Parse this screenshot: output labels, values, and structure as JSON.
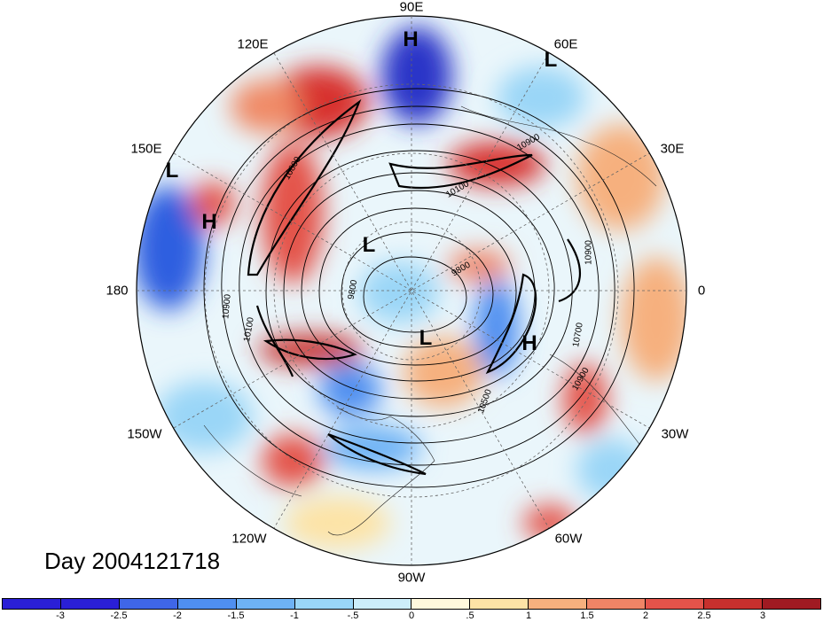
{
  "timestamp": "Day 2004121718",
  "longitude_labels": [
    "90E",
    "60E",
    "30E",
    "0",
    "30W",
    "60W",
    "90W",
    "120W",
    "150W",
    "180",
    "150E",
    "120E"
  ],
  "pressure_centers": [
    {
      "label": "H"
    },
    {
      "label": "L"
    },
    {
      "label": "L"
    },
    {
      "label": "H"
    },
    {
      "label": "L"
    },
    {
      "label": "L"
    },
    {
      "label": "H"
    }
  ],
  "contour_labels": [
    "10900",
    "10100",
    "10900",
    "10700",
    "10900",
    "10500",
    "9800",
    "9800",
    "10900",
    "10100",
    "10800"
  ],
  "colorbar": {
    "colors": [
      "#2a1fd6",
      "#3f66e8",
      "#4f8ff0",
      "#6eb2f5",
      "#9ad6f7",
      "#cdeefa",
      "#fff9dd",
      "#fde3a6",
      "#f6b07e",
      "#ef8466",
      "#e4534a",
      "#c7302d",
      "#a01a22"
    ],
    "ticks": [
      "-3",
      "-2.5",
      "-2",
      "-1.5",
      "-1",
      "-.5",
      "0",
      ".5",
      "1",
      "1.5",
      "2",
      "2.5",
      "3"
    ]
  }
}
